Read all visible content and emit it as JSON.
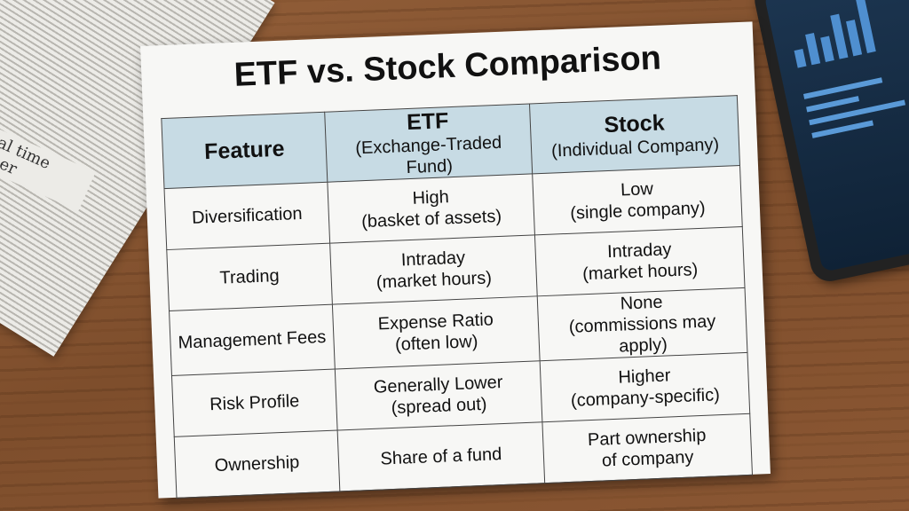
{
  "newspaper": {
    "headline_fragment": [
      "al time",
      "her"
    ]
  },
  "title": "ETF vs. Stock Comparison",
  "table": {
    "headers": [
      {
        "main": "Feature",
        "sub": ""
      },
      {
        "main": "ETF",
        "sub": "(Exchange-Traded Fund)"
      },
      {
        "main": "Stock",
        "sub": "(Individual Company)"
      }
    ],
    "rows": [
      {
        "feature": "Diversification",
        "etf": [
          "High",
          "(basket of assets)"
        ],
        "stock": [
          "Low",
          "(single company)"
        ]
      },
      {
        "feature": "Trading",
        "etf": [
          "Intraday",
          "(market hours)"
        ],
        "stock": [
          "Intraday",
          "(market hours)"
        ]
      },
      {
        "feature": "Management Fees",
        "etf": [
          "Expense Ratio",
          "(often low)"
        ],
        "stock": [
          "None",
          "(commissions may apply)"
        ]
      },
      {
        "feature": "Risk Profile",
        "etf": [
          "Generally Lower",
          "(spread out)"
        ],
        "stock": [
          "Higher",
          "(company-specific)"
        ]
      },
      {
        "feature": "Ownership",
        "etf": [
          "Share of a fund",
          ""
        ],
        "stock": [
          "Part ownership",
          "of company"
        ]
      }
    ]
  },
  "colors": {
    "header_bg": "#c7dbe4",
    "paper": "#f7f7f5",
    "wood": "#8b5733"
  }
}
